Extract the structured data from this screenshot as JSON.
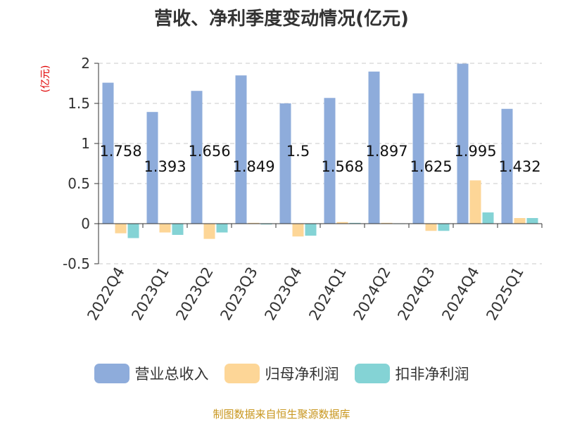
{
  "chart_data": {
    "type": "bar",
    "title": "营收、净利季度变动情况(亿元)",
    "ylabel": "(亿元)",
    "ylim": [
      -0.5,
      2
    ],
    "yticks": [
      "2",
      "1.5",
      "1",
      "0.5",
      "0",
      "-0.5"
    ],
    "categories": [
      "2022Q4",
      "2023Q1",
      "2023Q2",
      "2023Q3",
      "2023Q4",
      "2024Q1",
      "2024Q2",
      "2024Q3",
      "2024Q4",
      "2025Q1"
    ],
    "series": [
      {
        "name": "营业总收入",
        "color": "#8eacdb",
        "values": [
          1.758,
          1.393,
          1.656,
          1.849,
          1.5,
          1.568,
          1.897,
          1.625,
          1.995,
          1.432
        ]
      },
      {
        "name": "归母净利润",
        "color": "#fdd697",
        "values": [
          -0.12,
          -0.11,
          -0.19,
          0.01,
          -0.16,
          0.02,
          0.01,
          -0.09,
          0.54,
          0.07
        ]
      },
      {
        "name": "扣非净利润",
        "color": "#84d3d5",
        "values": [
          -0.18,
          -0.14,
          -0.11,
          -0.01,
          -0.15,
          0.01,
          0.0,
          -0.09,
          0.14,
          0.07
        ]
      }
    ],
    "data_labels": [
      "1.758",
      "1.393",
      "1.656",
      "1.849",
      "1.5",
      "1.568",
      "1.897",
      "1.625",
      "1.995",
      "1.432"
    ],
    "grid": true,
    "legend_position": "bottom"
  },
  "footer": {
    "source": "制图数据来自恒生聚源数据库"
  }
}
